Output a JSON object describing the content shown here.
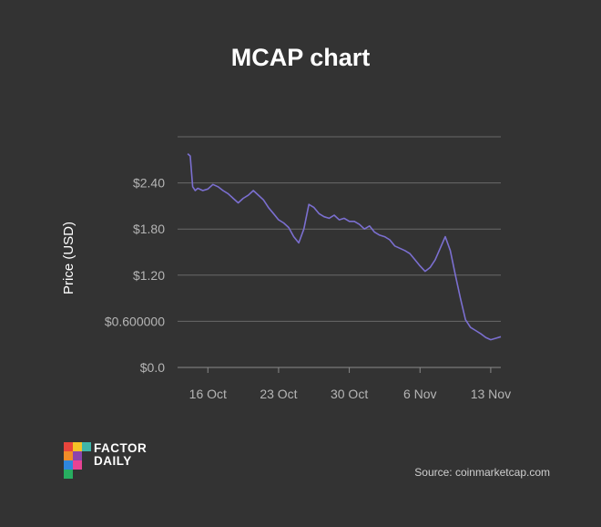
{
  "chart_data": {
    "type": "line",
    "title": "MCAP chart",
    "ylabel": "Price (USD)",
    "xlabel": "",
    "ylim": [
      0,
      3.0
    ],
    "xlim": [
      "2017-10-13",
      "2017-11-14"
    ],
    "grid": true,
    "y_ticks": [
      {
        "value": 0,
        "label": "$0.0"
      },
      {
        "value": 0.6,
        "label": "$0.600000"
      },
      {
        "value": 1.2,
        "label": "$1.20"
      },
      {
        "value": 1.8,
        "label": "$1.80"
      },
      {
        "value": 2.4,
        "label": "$2.40"
      }
    ],
    "x_ticks": [
      {
        "value": "2017-10-16",
        "label": "16 Oct"
      },
      {
        "value": "2017-10-23",
        "label": "23 Oct"
      },
      {
        "value": "2017-10-30",
        "label": "30 Oct"
      },
      {
        "value": "2017-11-06",
        "label": "6 Nov"
      },
      {
        "value": "2017-11-13",
        "label": "13 Nov"
      }
    ],
    "series": [
      {
        "color": "#7b6fd0",
        "x": [
          "2017-10-14T00:00",
          "2017-10-14T06:00",
          "2017-10-14T12:00",
          "2017-10-14T18:00",
          "2017-10-15T00:00",
          "2017-10-15T12:00",
          "2017-10-16T00:00",
          "2017-10-16T12:00",
          "2017-10-17T00:00",
          "2017-10-17T12:00",
          "2017-10-18T00:00",
          "2017-10-18T12:00",
          "2017-10-19T00:00",
          "2017-10-19T12:00",
          "2017-10-20T00:00",
          "2017-10-20T12:00",
          "2017-10-21T00:00",
          "2017-10-21T12:00",
          "2017-10-22T00:00",
          "2017-10-22T12:00",
          "2017-10-23T00:00",
          "2017-10-23T12:00",
          "2017-10-24T00:00",
          "2017-10-24T12:00",
          "2017-10-25T00:00",
          "2017-10-25T12:00",
          "2017-10-26T00:00",
          "2017-10-26T12:00",
          "2017-10-27T00:00",
          "2017-10-27T12:00",
          "2017-10-28T00:00",
          "2017-10-28T12:00",
          "2017-10-29T00:00",
          "2017-10-29T12:00",
          "2017-10-30T00:00",
          "2017-10-30T12:00",
          "2017-10-31T00:00",
          "2017-10-31T12:00",
          "2017-11-01T00:00",
          "2017-11-01T12:00",
          "2017-11-02T00:00",
          "2017-11-02T12:00",
          "2017-11-03T00:00",
          "2017-11-03T12:00",
          "2017-11-04T00:00",
          "2017-11-04T12:00",
          "2017-11-05T00:00",
          "2017-11-05T12:00",
          "2017-11-06T00:00",
          "2017-11-06T12:00",
          "2017-11-07T00:00",
          "2017-11-07T12:00",
          "2017-11-08T00:00",
          "2017-11-08T12:00",
          "2017-11-09T00:00",
          "2017-11-09T12:00",
          "2017-11-10T00:00",
          "2017-11-10T12:00",
          "2017-11-11T00:00",
          "2017-11-11T12:00",
          "2017-11-12T00:00",
          "2017-11-12T12:00",
          "2017-11-13T00:00",
          "2017-11-13T12:00",
          "2017-11-14T00:00"
        ],
        "values": [
          2.78,
          2.75,
          2.35,
          2.3,
          2.33,
          2.3,
          2.32,
          2.38,
          2.35,
          2.3,
          2.26,
          2.2,
          2.14,
          2.2,
          2.24,
          2.3,
          2.24,
          2.18,
          2.08,
          2.0,
          1.92,
          1.88,
          1.82,
          1.7,
          1.62,
          1.8,
          2.12,
          2.08,
          2.0,
          1.96,
          1.94,
          1.98,
          1.92,
          1.94,
          1.9,
          1.9,
          1.86,
          1.8,
          1.84,
          1.76,
          1.72,
          1.7,
          1.66,
          1.58,
          1.55,
          1.52,
          1.48,
          1.4,
          1.32,
          1.25,
          1.3,
          1.4,
          1.55,
          1.7,
          1.52,
          1.2,
          0.9,
          0.62,
          0.52,
          0.48,
          0.44,
          0.39,
          0.36,
          0.38,
          0.4
        ]
      }
    ]
  },
  "branding": {
    "logo_line1": "FACTOR",
    "logo_line2": "DAILY",
    "source_note": "Source: coinmarketcap.com"
  }
}
